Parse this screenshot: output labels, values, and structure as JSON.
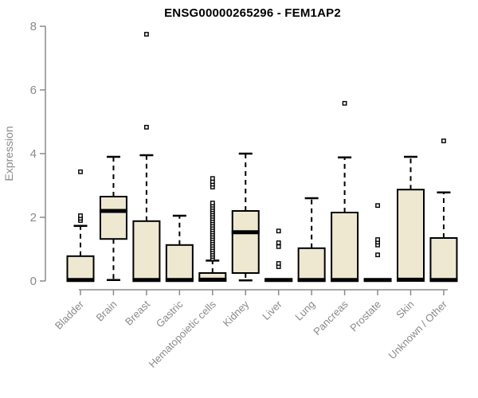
{
  "chart_data": {
    "type": "boxplot",
    "title": "ENSG00000265296 - FEM1AP2",
    "ylabel": "Expression",
    "xlabel": "",
    "ylim": [
      0,
      8
    ],
    "yticks": [
      0,
      2,
      4,
      6,
      8
    ],
    "grid": false,
    "legend": "none",
    "categories": [
      "Bladder",
      "Brain",
      "Breast",
      "Gastric",
      "Hematopoietic cells",
      "Kidney",
      "Liver",
      "Lung",
      "Pancreas",
      "Prostate",
      "Skin",
      "Unknown / Other"
    ],
    "series": [
      {
        "name": "Bladder",
        "q1": 0,
        "median": 0.03,
        "q3": 0.78,
        "whisker_low": 0,
        "whisker_high": 1.73,
        "outliers": [
          1.9,
          1.97,
          2.05,
          3.43
        ]
      },
      {
        "name": "Brain",
        "q1": 1.32,
        "median": 2.2,
        "q3": 2.65,
        "whisker_low": 0.03,
        "whisker_high": 3.9,
        "outliers": []
      },
      {
        "name": "Breast",
        "q1": 0,
        "median": 0.03,
        "q3": 1.88,
        "whisker_low": 0,
        "whisker_high": 3.95,
        "outliers": [
          4.83,
          7.75
        ]
      },
      {
        "name": "Gastric",
        "q1": 0,
        "median": 0.03,
        "q3": 1.13,
        "whisker_low": 0,
        "whisker_high": 2.05,
        "outliers": []
      },
      {
        "name": "Hematopoietic cells",
        "q1": 0,
        "median": 0.04,
        "q3": 0.25,
        "whisker_low": 0,
        "whisker_high": 0.64,
        "outliers": [
          0.7,
          0.77,
          0.84,
          0.91,
          0.98,
          1.05,
          1.12,
          1.19,
          1.26,
          1.33,
          1.4,
          1.47,
          1.54,
          1.61,
          1.68,
          1.75,
          1.82,
          1.89,
          1.96,
          2.03,
          2.1,
          2.17,
          2.24,
          2.31,
          2.38,
          2.45,
          2.95,
          3.04,
          3.12,
          3.22
        ]
      },
      {
        "name": "Kidney",
        "q1": 0.25,
        "median": 1.53,
        "q3": 2.2,
        "whisker_low": 0.02,
        "whisker_high": 4.0,
        "outliers": []
      },
      {
        "name": "Liver",
        "q1": 0,
        "median": 0.03,
        "q3": 0.06,
        "whisker_low": 0,
        "whisker_high": 0.06,
        "outliers": [
          0.45,
          0.55,
          1.08,
          1.2,
          1.57
        ]
      },
      {
        "name": "Lung",
        "q1": 0,
        "median": 0.03,
        "q3": 1.03,
        "whisker_low": 0,
        "whisker_high": 2.6,
        "outliers": []
      },
      {
        "name": "Pancreas",
        "q1": 0,
        "median": 0.03,
        "q3": 2.15,
        "whisker_low": 0,
        "whisker_high": 3.88,
        "outliers": [
          5.58
        ]
      },
      {
        "name": "Prostate",
        "q1": 0,
        "median": 0.03,
        "q3": 0.06,
        "whisker_low": 0,
        "whisker_high": 0.06,
        "outliers": [
          0.82,
          1.13,
          1.22,
          1.3,
          2.37
        ]
      },
      {
        "name": "Skin",
        "q1": 0,
        "median": 0.04,
        "q3": 2.87,
        "whisker_low": 0,
        "whisker_high": 3.9,
        "outliers": []
      },
      {
        "name": "Unknown / Other",
        "q1": 0,
        "median": 0.03,
        "q3": 1.35,
        "whisker_low": 0,
        "whisker_high": 2.78,
        "outliers": [
          4.4
        ]
      }
    ],
    "colors": {
      "box_fill": "#EDE8CF",
      "box_stroke": "#000000",
      "median": "#000000",
      "axis": "#8a8a8a",
      "tick_label": "#8a8a8a",
      "title": "#000000",
      "background": "#ffffff"
    }
  }
}
